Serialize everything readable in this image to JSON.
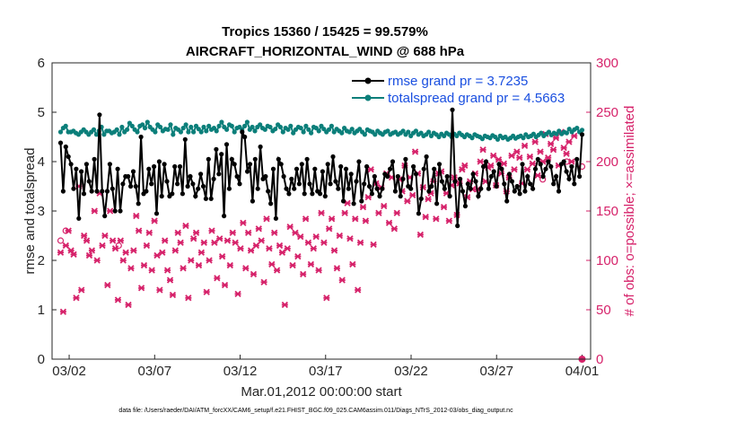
{
  "chart_data": {
    "type": "line",
    "title": "Tropics 15360 / 15425 = 99.579%",
    "subtitle": "AIRCRAFT_HORIZONTAL_WIND @ 688 hPa",
    "xlabel": "Mar.01,2012 00:00:00 start",
    "ylabel": "rmse and totalspread",
    "ylabel_right": "# of obs: o=possible; ×=assimilated",
    "ylim": [
      0,
      6
    ],
    "ylim_right": [
      0,
      300
    ],
    "yticks": [
      "0",
      "1",
      "2",
      "3",
      "4",
      "5",
      "6"
    ],
    "yticks_right": [
      "0",
      "50",
      "100",
      "150",
      "200",
      "250",
      "300"
    ],
    "xlim": [
      0,
      31.5
    ],
    "xticks": [
      {
        "x": 1,
        "label": "03/02"
      },
      {
        "x": 6,
        "label": "03/07"
      },
      {
        "x": 11,
        "label": "03/12"
      },
      {
        "x": 16,
        "label": "03/17"
      },
      {
        "x": 21,
        "label": "03/22"
      },
      {
        "x": 26,
        "label": "03/27"
      },
      {
        "x": 31,
        "label": "04/01"
      }
    ],
    "footnote": "data file: /Users/raeder/DAI/ATM_forcXX/CAM6_setup/f.e21.FHIST_BGC.f09_025.CAM6assim.011/Diags_NTrS_2012-03/obs_diag_output.nc",
    "series": [
      {
        "name": "rmse grand pr = 3.7235",
        "color": "#000000",
        "values": [
          4.38,
          3.4,
          4.3,
          4.1,
          3.95,
          3.45,
          3.85,
          2.85,
          3.8,
          3.35,
          3.95,
          3.6,
          3.4,
          4.05,
          3.4,
          4.95,
          3.4,
          2.9,
          3.4,
          3.95,
          3.45,
          3.0,
          3.85,
          3.0,
          3.55,
          3.7,
          3.7,
          3.5,
          3.8,
          3.5,
          3.15,
          4.5,
          3.35,
          3.4,
          3.85,
          3.55,
          3.9,
          2.95,
          4.0,
          3.3,
          3.95,
          3.6,
          3.3,
          3.35,
          3.9,
          3.55,
          3.9,
          3.35,
          4.45,
          3.5,
          3.7,
          3.55,
          3.3,
          3.45,
          3.75,
          3.5,
          3.25,
          4.05,
          3.25,
          3.65,
          4.25,
          3.75,
          4.15,
          2.9,
          4.35,
          3.45,
          4.05,
          3.95,
          3.7,
          3.55,
          4.6,
          4.5,
          3.8,
          3.95,
          3.2,
          4.05,
          3.45,
          4.3,
          3.65,
          3.7,
          3.4,
          3.15,
          3.85,
          2.85,
          4.05,
          3.95,
          3.7,
          3.45,
          3.35,
          3.65,
          3.45,
          3.85,
          3.55,
          3.95,
          3.35,
          4.05,
          3.55,
          3.35,
          3.85,
          3.4,
          3.35,
          3.8,
          3.3,
          3.95,
          3.55,
          4.1,
          3.6,
          3.45,
          3.9,
          3.2,
          3.85,
          3.45,
          3.75,
          3.15,
          3.6,
          4.0,
          3.2,
          3.55,
          3.9,
          3.5,
          3.35,
          3.7,
          3.45,
          3.3,
          3.45,
          3.75,
          3.7,
          3.85,
          4.0,
          3.4,
          3.7,
          3.3,
          3.65,
          4.05,
          3.5,
          3.45,
          3.9,
          3.75,
          2.95,
          3.25,
          3.85,
          4.1,
          3.4,
          3.5,
          3.85,
          3.15,
          3.95,
          3.6,
          3.45,
          3.7,
          3.3,
          5.05,
          3.6,
          2.7,
          3.65,
          3.4,
          3.1,
          3.55,
          3.45,
          3.75,
          3.6,
          3.3,
          3.45,
          3.9,
          4.0,
          3.45,
          3.7,
          3.8,
          3.5,
          3.95,
          3.85,
          3.55,
          3.2,
          3.75,
          3.6,
          3.4,
          3.5,
          3.35,
          3.95,
          3.4,
          3.7,
          3.55,
          3.45,
          3.85,
          4.05,
          3.95,
          3.7,
          3.85,
          4.0,
          3.9,
          3.55,
          3.7,
          3.4,
          3.95,
          4.0,
          3.8,
          3.65,
          3.9,
          3.55,
          4.05,
          3.7,
          4.55
        ]
      },
      {
        "name": "totalspread grand pr = 4.5663",
        "color": "#0b7f7a",
        "values": [
          4.6,
          4.68,
          4.72,
          4.6,
          4.6,
          4.62,
          4.58,
          4.55,
          4.6,
          4.65,
          4.6,
          4.55,
          4.6,
          4.65,
          4.55,
          4.62,
          4.7,
          4.55,
          4.62,
          4.62,
          4.58,
          4.6,
          4.65,
          4.55,
          4.7,
          4.6,
          4.65,
          4.78,
          4.72,
          4.65,
          4.6,
          4.72,
          4.75,
          4.68,
          4.8,
          4.7,
          4.65,
          4.6,
          4.75,
          4.7,
          4.62,
          4.66,
          4.65,
          4.75,
          4.55,
          4.68,
          4.65,
          4.6,
          4.68,
          4.75,
          4.6,
          4.7,
          4.6,
          4.72,
          4.66,
          4.6,
          4.7,
          4.62,
          4.72,
          4.65,
          4.68,
          4.62,
          4.72,
          4.8,
          4.7,
          4.65,
          4.75,
          4.72,
          4.6,
          4.68,
          4.7,
          4.65,
          4.72,
          4.8,
          4.65,
          4.7,
          4.62,
          4.7,
          4.75,
          4.68,
          4.65,
          4.72,
          4.7,
          4.62,
          4.66,
          4.75,
          4.7,
          4.6,
          4.68,
          4.65,
          4.72,
          4.58,
          4.65,
          4.7,
          4.68,
          4.6,
          4.72,
          4.65,
          4.58,
          4.7,
          4.68,
          4.62,
          4.72,
          4.66,
          4.6,
          4.65,
          4.72,
          4.6,
          4.66,
          4.62,
          4.58,
          4.68,
          4.62,
          4.6,
          4.66,
          4.58,
          4.62,
          4.66,
          4.6,
          4.55,
          4.65,
          4.62,
          4.6,
          4.55,
          4.62,
          4.58,
          4.55,
          4.6,
          4.62,
          4.55,
          4.58,
          4.6,
          4.55,
          4.58,
          4.62,
          4.55,
          4.6,
          4.52,
          4.58,
          4.62,
          4.55,
          4.58,
          4.52,
          4.55,
          4.6,
          4.52,
          4.58,
          4.55,
          4.5,
          4.56,
          4.52,
          4.58,
          4.55,
          4.5,
          4.56,
          4.52,
          4.58,
          4.54,
          4.5,
          4.55,
          4.52,
          4.48,
          4.55,
          4.52,
          4.5,
          4.46,
          4.52,
          4.5,
          4.48,
          4.53,
          4.5,
          4.45,
          4.52,
          4.48,
          4.5,
          4.45,
          4.48,
          4.52,
          4.47,
          4.5,
          4.52,
          4.48,
          4.55,
          4.5,
          4.52,
          4.56,
          4.5,
          4.54,
          4.58,
          4.52,
          4.56,
          4.6,
          4.54,
          4.58,
          4.56,
          4.62,
          4.56,
          4.6,
          4.58,
          4.66,
          4.6,
          4.65,
          4.68,
          4.6,
          4.64
        ]
      }
    ],
    "obs_assimilated": {
      "name": "assimilated",
      "color": "#d6226a",
      "values": [
        108,
        48,
        115,
        130,
        110,
        106,
        62,
        175,
        70,
        125,
        120,
        105,
        110,
        150,
        100,
        168,
        115,
        125,
        75,
        150,
        120,
        112,
        60,
        120,
        100,
        108,
        55,
        92,
        110,
        145,
        130,
        72,
        95,
        115,
        128,
        90,
        140,
        105,
        70,
        108,
        120,
        90,
        80,
        65,
        110,
        128,
        118,
        92,
        135,
        62,
        100,
        122,
        128,
        95,
        108,
        118,
        68,
        100,
        130,
        118,
        82,
        122,
        104,
        75,
        120,
        95,
        128,
        118,
        66,
        112,
        138,
        92,
        128,
        110,
        86,
        115,
        132,
        120,
        78,
        142,
        112,
        96,
        128,
        90,
        115,
        108,
        55,
        112,
        134,
        95,
        128,
        104,
        124,
        86,
        142,
        118,
        96,
        112,
        124,
        90,
        148,
        118,
        62,
        132,
        142,
        110,
        92,
        125,
        80,
        148,
        158,
        122,
        96,
        142,
        70,
        118,
        154,
        140,
        164,
        192,
        116,
        178,
        148,
        174,
        155,
        188,
        138,
        184,
        132,
        148,
        182,
        170,
        196,
        160,
        184,
        166,
        210,
        188,
        126,
        174,
        144,
        162,
        168,
        180,
        142,
        188,
        190,
        154,
        168,
        140,
        176,
        184,
        146,
        178,
        192,
        196,
        164,
        180,
        172,
        188,
        172,
        200,
        212,
        180,
        194,
        196,
        206,
        176,
        202,
        188,
        198,
        170,
        184,
        206,
        192,
        210,
        204,
        178,
        216,
        192,
        205,
        198,
        220,
        186,
        210,
        200,
        228,
        204,
        218,
        212,
        224,
        196,
        230,
        214,
        208,
        220,
        200,
        226
      ]
    },
    "obs_possible_markers": [
      {
        "x": 0.5,
        "y": 120
      },
      {
        "x": 0.8,
        "y": 130
      },
      {
        "x": 3.9,
        "y": 115
      },
      {
        "x": 28.7,
        "y": 182
      },
      {
        "x": 30.1,
        "y": 200
      },
      {
        "x": 31.0,
        "y": 195
      }
    ],
    "legend": {
      "position": "top-right"
    }
  }
}
